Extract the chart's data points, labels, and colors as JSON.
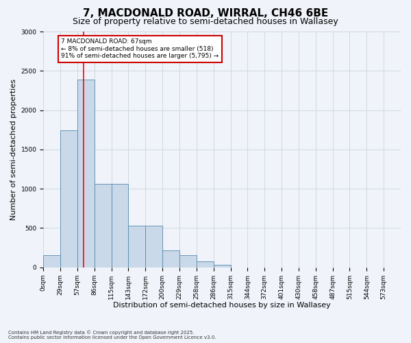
{
  "title_line1": "7, MACDONALD ROAD, WIRRAL, CH46 6BE",
  "title_line2": "Size of property relative to semi-detached houses in Wallasey",
  "xlabel": "Distribution of semi-detached houses by size in Wallasey",
  "ylabel": "Number of semi-detached properties",
  "bin_labels": [
    "0sqm",
    "29sqm",
    "57sqm",
    "86sqm",
    "115sqm",
    "143sqm",
    "172sqm",
    "200sqm",
    "229sqm",
    "258sqm",
    "286sqm",
    "315sqm",
    "344sqm",
    "372sqm",
    "401sqm",
    "430sqm",
    "458sqm",
    "487sqm",
    "515sqm",
    "544sqm",
    "573sqm"
  ],
  "bar_values": [
    155,
    1740,
    2390,
    1060,
    1060,
    530,
    530,
    215,
    155,
    75,
    30,
    0,
    0,
    0,
    0,
    0,
    0,
    0,
    0,
    0,
    0
  ],
  "bar_color": "#c9d9ea",
  "bar_edge_color": "#5588aa",
  "grid_color": "#d0d8e0",
  "background_color": "#f0f4fa",
  "annotation_text": "7 MACDONALD ROAD: 67sqm\n← 8% of semi-detached houses are smaller (518)\n91% of semi-detached houses are larger (5,795) →",
  "annotation_box_color": "#ffffff",
  "annotation_box_edge": "#cc0000",
  "ylim": [
    0,
    3000
  ],
  "yticks": [
    0,
    500,
    1000,
    1500,
    2000,
    2500,
    3000
  ],
  "footnote": "Contains HM Land Registry data © Crown copyright and database right 2025.\nContains public sector information licensed under the Open Government Licence v3.0.",
  "title_fontsize": 11,
  "subtitle_fontsize": 9,
  "tick_fontsize": 6.5,
  "ylabel_fontsize": 8,
  "xlabel_fontsize": 8,
  "footnote_fontsize": 5
}
